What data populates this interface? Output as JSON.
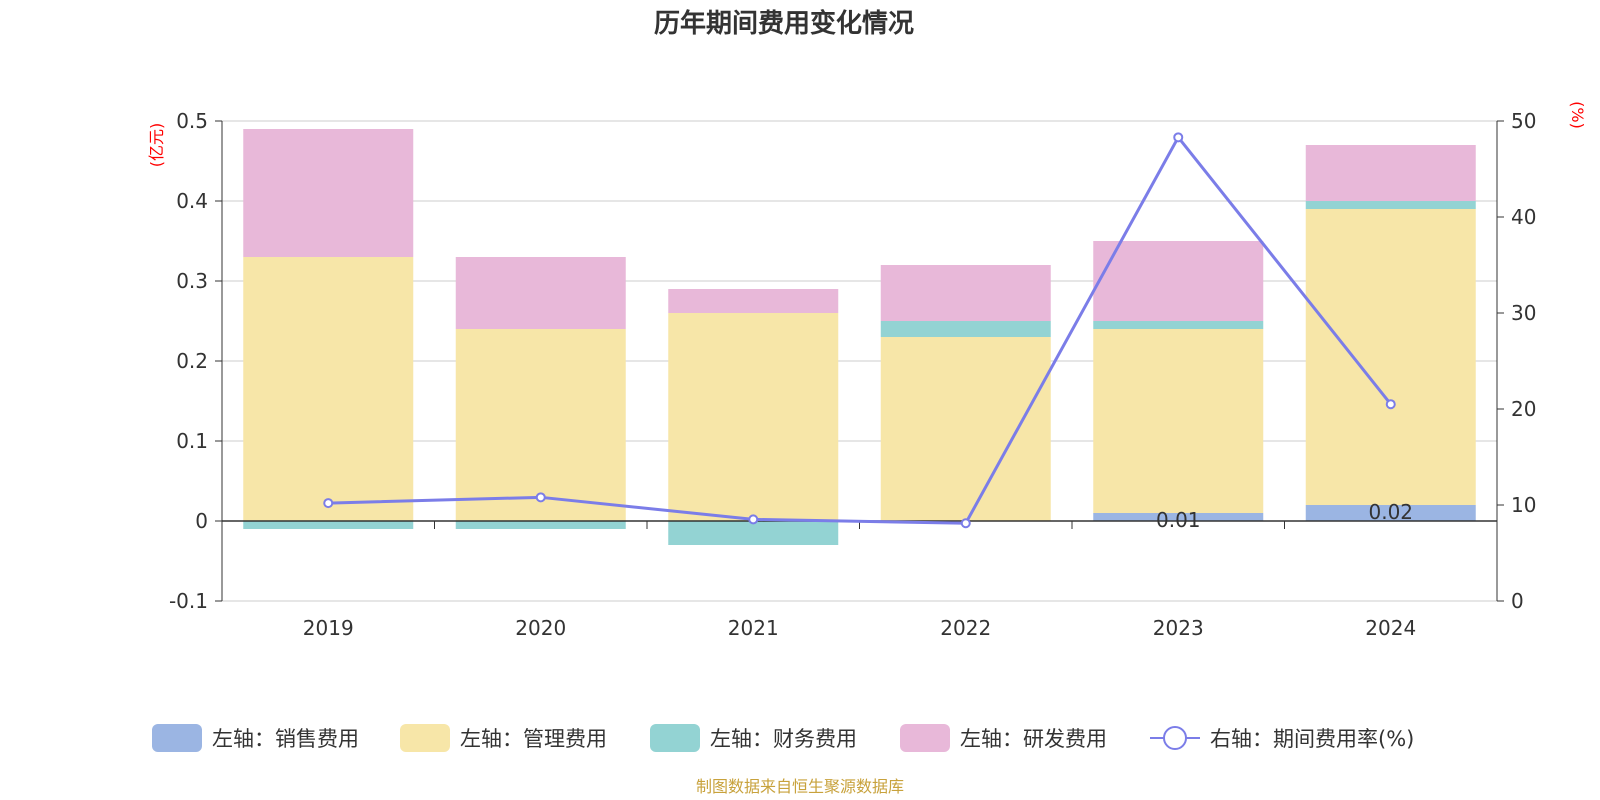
{
  "chart_data": {
    "type": "bar",
    "title": "历年期间费用变化情况",
    "categories": [
      "2019",
      "2020",
      "2021",
      "2022",
      "2023",
      "2024"
    ],
    "left_axis": {
      "unit": "(亿元)",
      "ylim": [
        -0.1,
        0.5
      ],
      "ticks": [
        "0.5",
        "0.4",
        "0.3",
        "0.2",
        "0.1",
        "0",
        "-0.1"
      ]
    },
    "right_axis": {
      "unit": "(%)",
      "ylim": [
        0,
        50
      ],
      "ticks": [
        "50",
        "40",
        "30",
        "20",
        "10",
        "0"
      ]
    },
    "series": [
      {
        "name": "左轴：销售费用",
        "type": "bar",
        "axis": "left",
        "color": "#9bb5e3",
        "values": [
          0,
          0,
          0,
          0,
          0.01,
          0.02
        ],
        "labels": [
          "",
          "",
          "",
          "",
          "0.01",
          "0.02"
        ]
      },
      {
        "name": "左轴：管理费用",
        "type": "bar",
        "axis": "left",
        "color": "#f7e6a8",
        "values": [
          0.33,
          0.24,
          0.26,
          0.23,
          0.23,
          0.37
        ]
      },
      {
        "name": "左轴：财务费用",
        "type": "bar",
        "axis": "left",
        "color": "#93d3d3",
        "values": [
          -0.01,
          -0.01,
          -0.03,
          0.02,
          0.01,
          0.01
        ]
      },
      {
        "name": "左轴：研发费用",
        "type": "bar",
        "axis": "left",
        "color": "#e8b8d9",
        "values": [
          0.16,
          0.09,
          0.03,
          0.07,
          0.1,
          0.07
        ]
      },
      {
        "name": "右轴：期间费用率(%)",
        "type": "line",
        "axis": "right",
        "color": "#7b7de8",
        "values": [
          10.2,
          10.8,
          8.5,
          8.1,
          48.3,
          20.5
        ]
      }
    ],
    "grid": true,
    "legend_position": "bottom"
  },
  "source": "制图数据来自恒生聚源数据库"
}
